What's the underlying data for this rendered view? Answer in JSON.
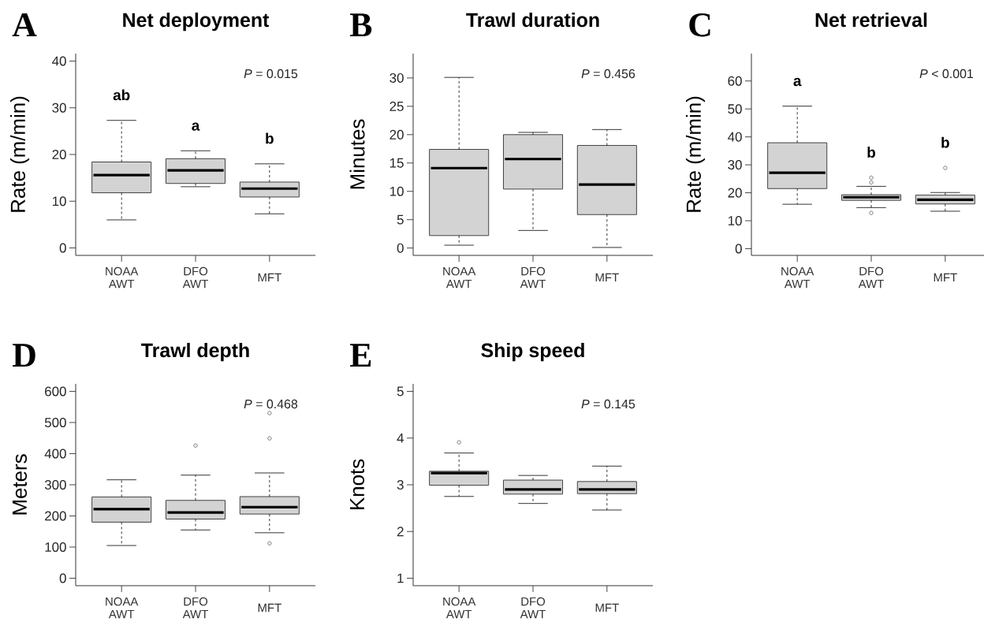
{
  "chart_data": [
    {
      "type": "box",
      "title": "Net deployment",
      "ylabel": "Rate (m/min)",
      "categories": [
        "NOAA AWT",
        "DFO AWT",
        "MFT"
      ],
      "ylim": [
        -1.6,
        41.6
      ],
      "yticks": [
        0,
        10,
        20,
        30,
        40
      ],
      "series": [
        {
          "color": "#d3d3d3",
          "boxes": [
            {
              "low": 6.0,
              "q1": 11.8,
              "median": 15.6,
              "q3": 18.4,
              "high": 27.3
            },
            {
              "low": 13.1,
              "q1": 13.8,
              "median": 16.6,
              "q3": 19.1,
              "high": 20.8
            },
            {
              "low": 7.3,
              "q1": 10.9,
              "median": 12.7,
              "q3": 14.1,
              "high": 18.0
            }
          ]
        }
      ],
      "annotations": [
        "A",
        "*P* = 0.015",
        "ab",
        "a",
        "b"
      ]
    },
    {
      "type": "box",
      "title": "Trawl duration",
      "ylabel": "Minutes",
      "categories": [
        "NOAA AWT",
        "DFO AWT",
        "MFT"
      ],
      "ylim": [
        -1.3,
        34.3
      ],
      "yticks": [
        0,
        5,
        10,
        15,
        20,
        25,
        30
      ],
      "series": [
        {
          "color": "#d3d3d3",
          "boxes": [
            {
              "low": 0.5,
              "q1": 2.2,
              "median": 14.1,
              "q3": 17.4,
              "high": 30.1
            },
            {
              "low": 3.1,
              "q1": 10.4,
              "median": 15.7,
              "q3": 20.0,
              "high": 20.4
            },
            {
              "low": 0.1,
              "q1": 5.9,
              "median": 11.2,
              "q3": 18.1,
              "high": 20.9
            }
          ]
        }
      ],
      "annotations": [
        "B",
        "*P* = 0.456"
      ]
    },
    {
      "type": "box",
      "title": "Net retrieval",
      "ylabel": "Rate (m/min)",
      "categories": [
        "NOAA AWT",
        "DFO AWT",
        "MFT"
      ],
      "ylim": [
        -2.4,
        69.8
      ],
      "yticks": [
        0,
        10,
        20,
        30,
        40,
        50,
        60
      ],
      "series": [
        {
          "color": "#d3d3d3",
          "boxes": [
            {
              "low": 15.9,
              "q1": 21.5,
              "median": 27.2,
              "q3": 37.9,
              "high": 51.0
            },
            {
              "low": 14.7,
              "q1": 17.3,
              "median": 18.4,
              "q3": 19.3,
              "high": 22.3,
              "outliers": [
                25.4,
                23.7,
                12.8
              ]
            },
            {
              "low": 13.4,
              "q1": 16.0,
              "median": 17.5,
              "q3": 19.2,
              "high": 20.1,
              "outliers": [
                28.9
              ]
            }
          ]
        }
      ],
      "annotations": [
        "C",
        "*P* < 0.001",
        "a",
        "b",
        "b"
      ]
    },
    {
      "type": "box",
      "title": "Trawl depth",
      "ylabel": "Meters",
      "categories": [
        "NOAA AWT",
        "DFO AWT",
        "MFT"
      ],
      "ylim": [
        -24,
        624
      ],
      "yticks": [
        0,
        100,
        200,
        300,
        400,
        500,
        600
      ],
      "series": [
        {
          "color": "#d3d3d3",
          "boxes": [
            {
              "low": 105,
              "q1": 180,
              "median": 222,
              "q3": 261,
              "high": 316
            },
            {
              "low": 155,
              "q1": 190,
              "median": 211,
              "q3": 250,
              "high": 331,
              "outliers": [
                426
              ]
            },
            {
              "low": 146,
              "q1": 206,
              "median": 228,
              "q3": 262,
              "high": 338,
              "outliers": [
                530,
                449,
                112
              ]
            }
          ]
        }
      ],
      "annotations": [
        "D",
        "*P* = 0.468"
      ]
    },
    {
      "type": "box",
      "title": "Ship speed",
      "ylabel": "Knots",
      "categories": [
        "NOAA AWT",
        "DFO AWT",
        "MFT"
      ],
      "ylim": [
        0.84,
        5.16
      ],
      "yticks": [
        1,
        2,
        3,
        4,
        5
      ],
      "series": [
        {
          "color": "#d3d3d3",
          "boxes": [
            {
              "low": 2.75,
              "q1": 2.99,
              "median": 3.25,
              "q3": 3.29,
              "high": 3.68,
              "outliers": [
                3.91
              ]
            },
            {
              "low": 2.6,
              "q1": 2.8,
              "median": 2.9,
              "q3": 3.1,
              "high": 3.2
            },
            {
              "low": 2.46,
              "q1": 2.81,
              "median": 2.9,
              "q3": 3.07,
              "high": 3.4
            }
          ]
        }
      ],
      "annotations": [
        "E",
        "*P* = 0.145"
      ]
    }
  ]
}
